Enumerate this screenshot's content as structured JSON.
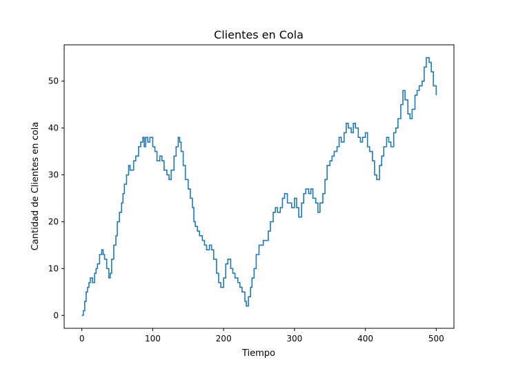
{
  "chart_data": {
    "type": "line",
    "title": "Clientes en Cola",
    "xlabel": "Tiempo",
    "ylabel": "Cantidad de Clientes en cola",
    "xlim": [
      -25,
      525
    ],
    "ylim": [
      -2.75,
      57.75
    ],
    "xticks": [
      0,
      100,
      200,
      300,
      400,
      500
    ],
    "yticks": [
      0,
      10,
      20,
      30,
      40,
      50
    ],
    "grid": false,
    "series": [
      {
        "color": "#1f77b4",
        "x": [
          0,
          2,
          4,
          6,
          8,
          10,
          12,
          15,
          18,
          20,
          22,
          25,
          28,
          30,
          32,
          35,
          38,
          40,
          42,
          45,
          48,
          50,
          53,
          56,
          58,
          60,
          63,
          66,
          68,
          70,
          73,
          76,
          80,
          83,
          86,
          88,
          90,
          93,
          96,
          100,
          103,
          106,
          110,
          113,
          116,
          120,
          123,
          126,
          130,
          133,
          136,
          138,
          140,
          143,
          146,
          150,
          153,
          156,
          158,
          160,
          163,
          166,
          170,
          173,
          176,
          180,
          183,
          186,
          190,
          193,
          196,
          200,
          203,
          206,
          210,
          213,
          216,
          220,
          223,
          226,
          230,
          232,
          235,
          238,
          240,
          243,
          246,
          250,
          253,
          256,
          260,
          263,
          266,
          270,
          273,
          276,
          280,
          283,
          286,
          290,
          293,
          296,
          300,
          303,
          306,
          310,
          313,
          316,
          320,
          323,
          326,
          330,
          333,
          336,
          340,
          343,
          346,
          350,
          353,
          356,
          360,
          363,
          366,
          370,
          373,
          376,
          380,
          383,
          386,
          390,
          393,
          396,
          400,
          403,
          406,
          410,
          413,
          416,
          420,
          423,
          426,
          430,
          433,
          436,
          440,
          443,
          446,
          450,
          453,
          456,
          460,
          463,
          466,
          470,
          473,
          476,
          480,
          483,
          486,
          490,
          493,
          496,
          500
        ],
        "y": [
          0,
          1,
          3,
          5,
          6,
          7,
          8,
          7,
          9,
          10,
          11,
          13,
          14,
          13,
          12,
          10,
          8,
          9,
          12,
          15,
          17,
          20,
          22,
          24,
          26,
          28,
          30,
          32,
          31,
          31,
          33,
          34,
          36,
          37,
          38,
          36,
          38,
          37,
          38,
          36,
          35,
          33,
          34,
          33,
          31,
          30,
          29,
          31,
          34,
          36,
          38,
          37,
          35,
          32,
          29,
          27,
          25,
          23,
          20,
          19,
          18,
          17,
          16,
          15,
          14,
          15,
          14,
          12,
          9,
          7,
          6,
          8,
          11,
          12,
          10,
          9,
          8,
          7,
          6,
          5,
          3,
          2,
          4,
          6,
          8,
          10,
          13,
          15,
          15,
          16,
          16,
          18,
          20,
          22,
          23,
          22,
          23,
          25,
          26,
          24,
          24,
          23,
          25,
          23,
          21,
          24,
          26,
          27,
          26,
          27,
          25,
          24,
          22,
          24,
          26,
          29,
          32,
          33,
          34,
          35,
          36,
          38,
          37,
          39,
          41,
          40,
          39,
          41,
          40,
          38,
          37,
          38,
          39,
          36,
          35,
          33,
          30,
          29,
          32,
          34,
          36,
          38,
          37,
          36,
          39,
          40,
          42,
          45,
          48,
          46,
          43,
          42,
          44,
          47,
          48,
          49,
          50,
          53,
          55,
          54,
          52,
          49,
          47
        ]
      }
    ]
  }
}
